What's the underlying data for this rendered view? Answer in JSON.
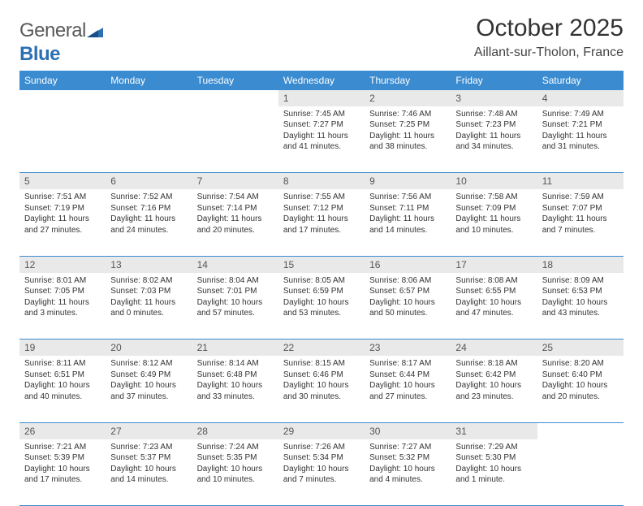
{
  "brand": {
    "name_a": "General",
    "name_b": "Blue"
  },
  "title": "October 2025",
  "location": "Aillant-sur-Tholon, France",
  "colors": {
    "header_bg": "#3a8bd0",
    "header_text": "#ffffff",
    "daynum_bg": "#e9e9e9",
    "rule": "#3a8bd0",
    "text": "#333333",
    "brand_blue": "#2d6fb3"
  },
  "day_headers": [
    "Sunday",
    "Monday",
    "Tuesday",
    "Wednesday",
    "Thursday",
    "Friday",
    "Saturday"
  ],
  "weeks": [
    [
      {
        "n": "",
        "sr": "",
        "ss": "",
        "dl": ""
      },
      {
        "n": "",
        "sr": "",
        "ss": "",
        "dl": ""
      },
      {
        "n": "",
        "sr": "",
        "ss": "",
        "dl": ""
      },
      {
        "n": "1",
        "sr": "Sunrise: 7:45 AM",
        "ss": "Sunset: 7:27 PM",
        "dl": "Daylight: 11 hours and 41 minutes."
      },
      {
        "n": "2",
        "sr": "Sunrise: 7:46 AM",
        "ss": "Sunset: 7:25 PM",
        "dl": "Daylight: 11 hours and 38 minutes."
      },
      {
        "n": "3",
        "sr": "Sunrise: 7:48 AM",
        "ss": "Sunset: 7:23 PM",
        "dl": "Daylight: 11 hours and 34 minutes."
      },
      {
        "n": "4",
        "sr": "Sunrise: 7:49 AM",
        "ss": "Sunset: 7:21 PM",
        "dl": "Daylight: 11 hours and 31 minutes."
      }
    ],
    [
      {
        "n": "5",
        "sr": "Sunrise: 7:51 AM",
        "ss": "Sunset: 7:19 PM",
        "dl": "Daylight: 11 hours and 27 minutes."
      },
      {
        "n": "6",
        "sr": "Sunrise: 7:52 AM",
        "ss": "Sunset: 7:16 PM",
        "dl": "Daylight: 11 hours and 24 minutes."
      },
      {
        "n": "7",
        "sr": "Sunrise: 7:54 AM",
        "ss": "Sunset: 7:14 PM",
        "dl": "Daylight: 11 hours and 20 minutes."
      },
      {
        "n": "8",
        "sr": "Sunrise: 7:55 AM",
        "ss": "Sunset: 7:12 PM",
        "dl": "Daylight: 11 hours and 17 minutes."
      },
      {
        "n": "9",
        "sr": "Sunrise: 7:56 AM",
        "ss": "Sunset: 7:11 PM",
        "dl": "Daylight: 11 hours and 14 minutes."
      },
      {
        "n": "10",
        "sr": "Sunrise: 7:58 AM",
        "ss": "Sunset: 7:09 PM",
        "dl": "Daylight: 11 hours and 10 minutes."
      },
      {
        "n": "11",
        "sr": "Sunrise: 7:59 AM",
        "ss": "Sunset: 7:07 PM",
        "dl": "Daylight: 11 hours and 7 minutes."
      }
    ],
    [
      {
        "n": "12",
        "sr": "Sunrise: 8:01 AM",
        "ss": "Sunset: 7:05 PM",
        "dl": "Daylight: 11 hours and 3 minutes."
      },
      {
        "n": "13",
        "sr": "Sunrise: 8:02 AM",
        "ss": "Sunset: 7:03 PM",
        "dl": "Daylight: 11 hours and 0 minutes."
      },
      {
        "n": "14",
        "sr": "Sunrise: 8:04 AM",
        "ss": "Sunset: 7:01 PM",
        "dl": "Daylight: 10 hours and 57 minutes."
      },
      {
        "n": "15",
        "sr": "Sunrise: 8:05 AM",
        "ss": "Sunset: 6:59 PM",
        "dl": "Daylight: 10 hours and 53 minutes."
      },
      {
        "n": "16",
        "sr": "Sunrise: 8:06 AM",
        "ss": "Sunset: 6:57 PM",
        "dl": "Daylight: 10 hours and 50 minutes."
      },
      {
        "n": "17",
        "sr": "Sunrise: 8:08 AM",
        "ss": "Sunset: 6:55 PM",
        "dl": "Daylight: 10 hours and 47 minutes."
      },
      {
        "n": "18",
        "sr": "Sunrise: 8:09 AM",
        "ss": "Sunset: 6:53 PM",
        "dl": "Daylight: 10 hours and 43 minutes."
      }
    ],
    [
      {
        "n": "19",
        "sr": "Sunrise: 8:11 AM",
        "ss": "Sunset: 6:51 PM",
        "dl": "Daylight: 10 hours and 40 minutes."
      },
      {
        "n": "20",
        "sr": "Sunrise: 8:12 AM",
        "ss": "Sunset: 6:49 PM",
        "dl": "Daylight: 10 hours and 37 minutes."
      },
      {
        "n": "21",
        "sr": "Sunrise: 8:14 AM",
        "ss": "Sunset: 6:48 PM",
        "dl": "Daylight: 10 hours and 33 minutes."
      },
      {
        "n": "22",
        "sr": "Sunrise: 8:15 AM",
        "ss": "Sunset: 6:46 PM",
        "dl": "Daylight: 10 hours and 30 minutes."
      },
      {
        "n": "23",
        "sr": "Sunrise: 8:17 AM",
        "ss": "Sunset: 6:44 PM",
        "dl": "Daylight: 10 hours and 27 minutes."
      },
      {
        "n": "24",
        "sr": "Sunrise: 8:18 AM",
        "ss": "Sunset: 6:42 PM",
        "dl": "Daylight: 10 hours and 23 minutes."
      },
      {
        "n": "25",
        "sr": "Sunrise: 8:20 AM",
        "ss": "Sunset: 6:40 PM",
        "dl": "Daylight: 10 hours and 20 minutes."
      }
    ],
    [
      {
        "n": "26",
        "sr": "Sunrise: 7:21 AM",
        "ss": "Sunset: 5:39 PM",
        "dl": "Daylight: 10 hours and 17 minutes."
      },
      {
        "n": "27",
        "sr": "Sunrise: 7:23 AM",
        "ss": "Sunset: 5:37 PM",
        "dl": "Daylight: 10 hours and 14 minutes."
      },
      {
        "n": "28",
        "sr": "Sunrise: 7:24 AM",
        "ss": "Sunset: 5:35 PM",
        "dl": "Daylight: 10 hours and 10 minutes."
      },
      {
        "n": "29",
        "sr": "Sunrise: 7:26 AM",
        "ss": "Sunset: 5:34 PM",
        "dl": "Daylight: 10 hours and 7 minutes."
      },
      {
        "n": "30",
        "sr": "Sunrise: 7:27 AM",
        "ss": "Sunset: 5:32 PM",
        "dl": "Daylight: 10 hours and 4 minutes."
      },
      {
        "n": "31",
        "sr": "Sunrise: 7:29 AM",
        "ss": "Sunset: 5:30 PM",
        "dl": "Daylight: 10 hours and 1 minute."
      },
      {
        "n": "",
        "sr": "",
        "ss": "",
        "dl": ""
      }
    ]
  ]
}
